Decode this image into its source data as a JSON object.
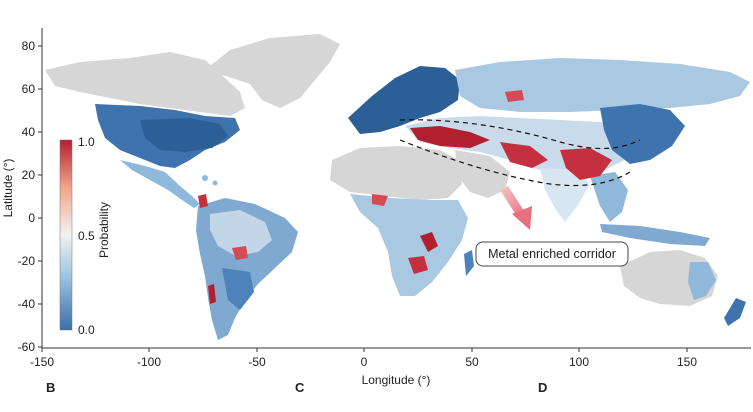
{
  "axes": {
    "xlabel": "Longitude (°)",
    "ylabel": "Latitude (°)",
    "xticks": [
      "-150",
      "-100",
      "-50",
      "0",
      "50",
      "100",
      "150"
    ],
    "yticks": [
      "80",
      "60",
      "40",
      "20",
      "0",
      "-20",
      "-40",
      "-60"
    ],
    "xrange": [
      -150,
      180
    ],
    "yrange": [
      -60,
      90
    ]
  },
  "colorbar": {
    "label": "Probability",
    "max_label": "1.0",
    "mid_label": "0.5",
    "min_label": "0.0",
    "colors": [
      "#3b6fa8",
      "#9cc3e0",
      "#f2f2f2",
      "#f0a58a",
      "#b2202f"
    ]
  },
  "annotation": {
    "text": "Metal enriched corridor",
    "arrow_color": "#e8707a"
  },
  "panel_labels": [
    "B",
    "C",
    "D"
  ],
  "colors": {
    "land_background": "#d6d6d6",
    "high_probability": "#b2202f",
    "low_probability": "#2c5f96"
  }
}
